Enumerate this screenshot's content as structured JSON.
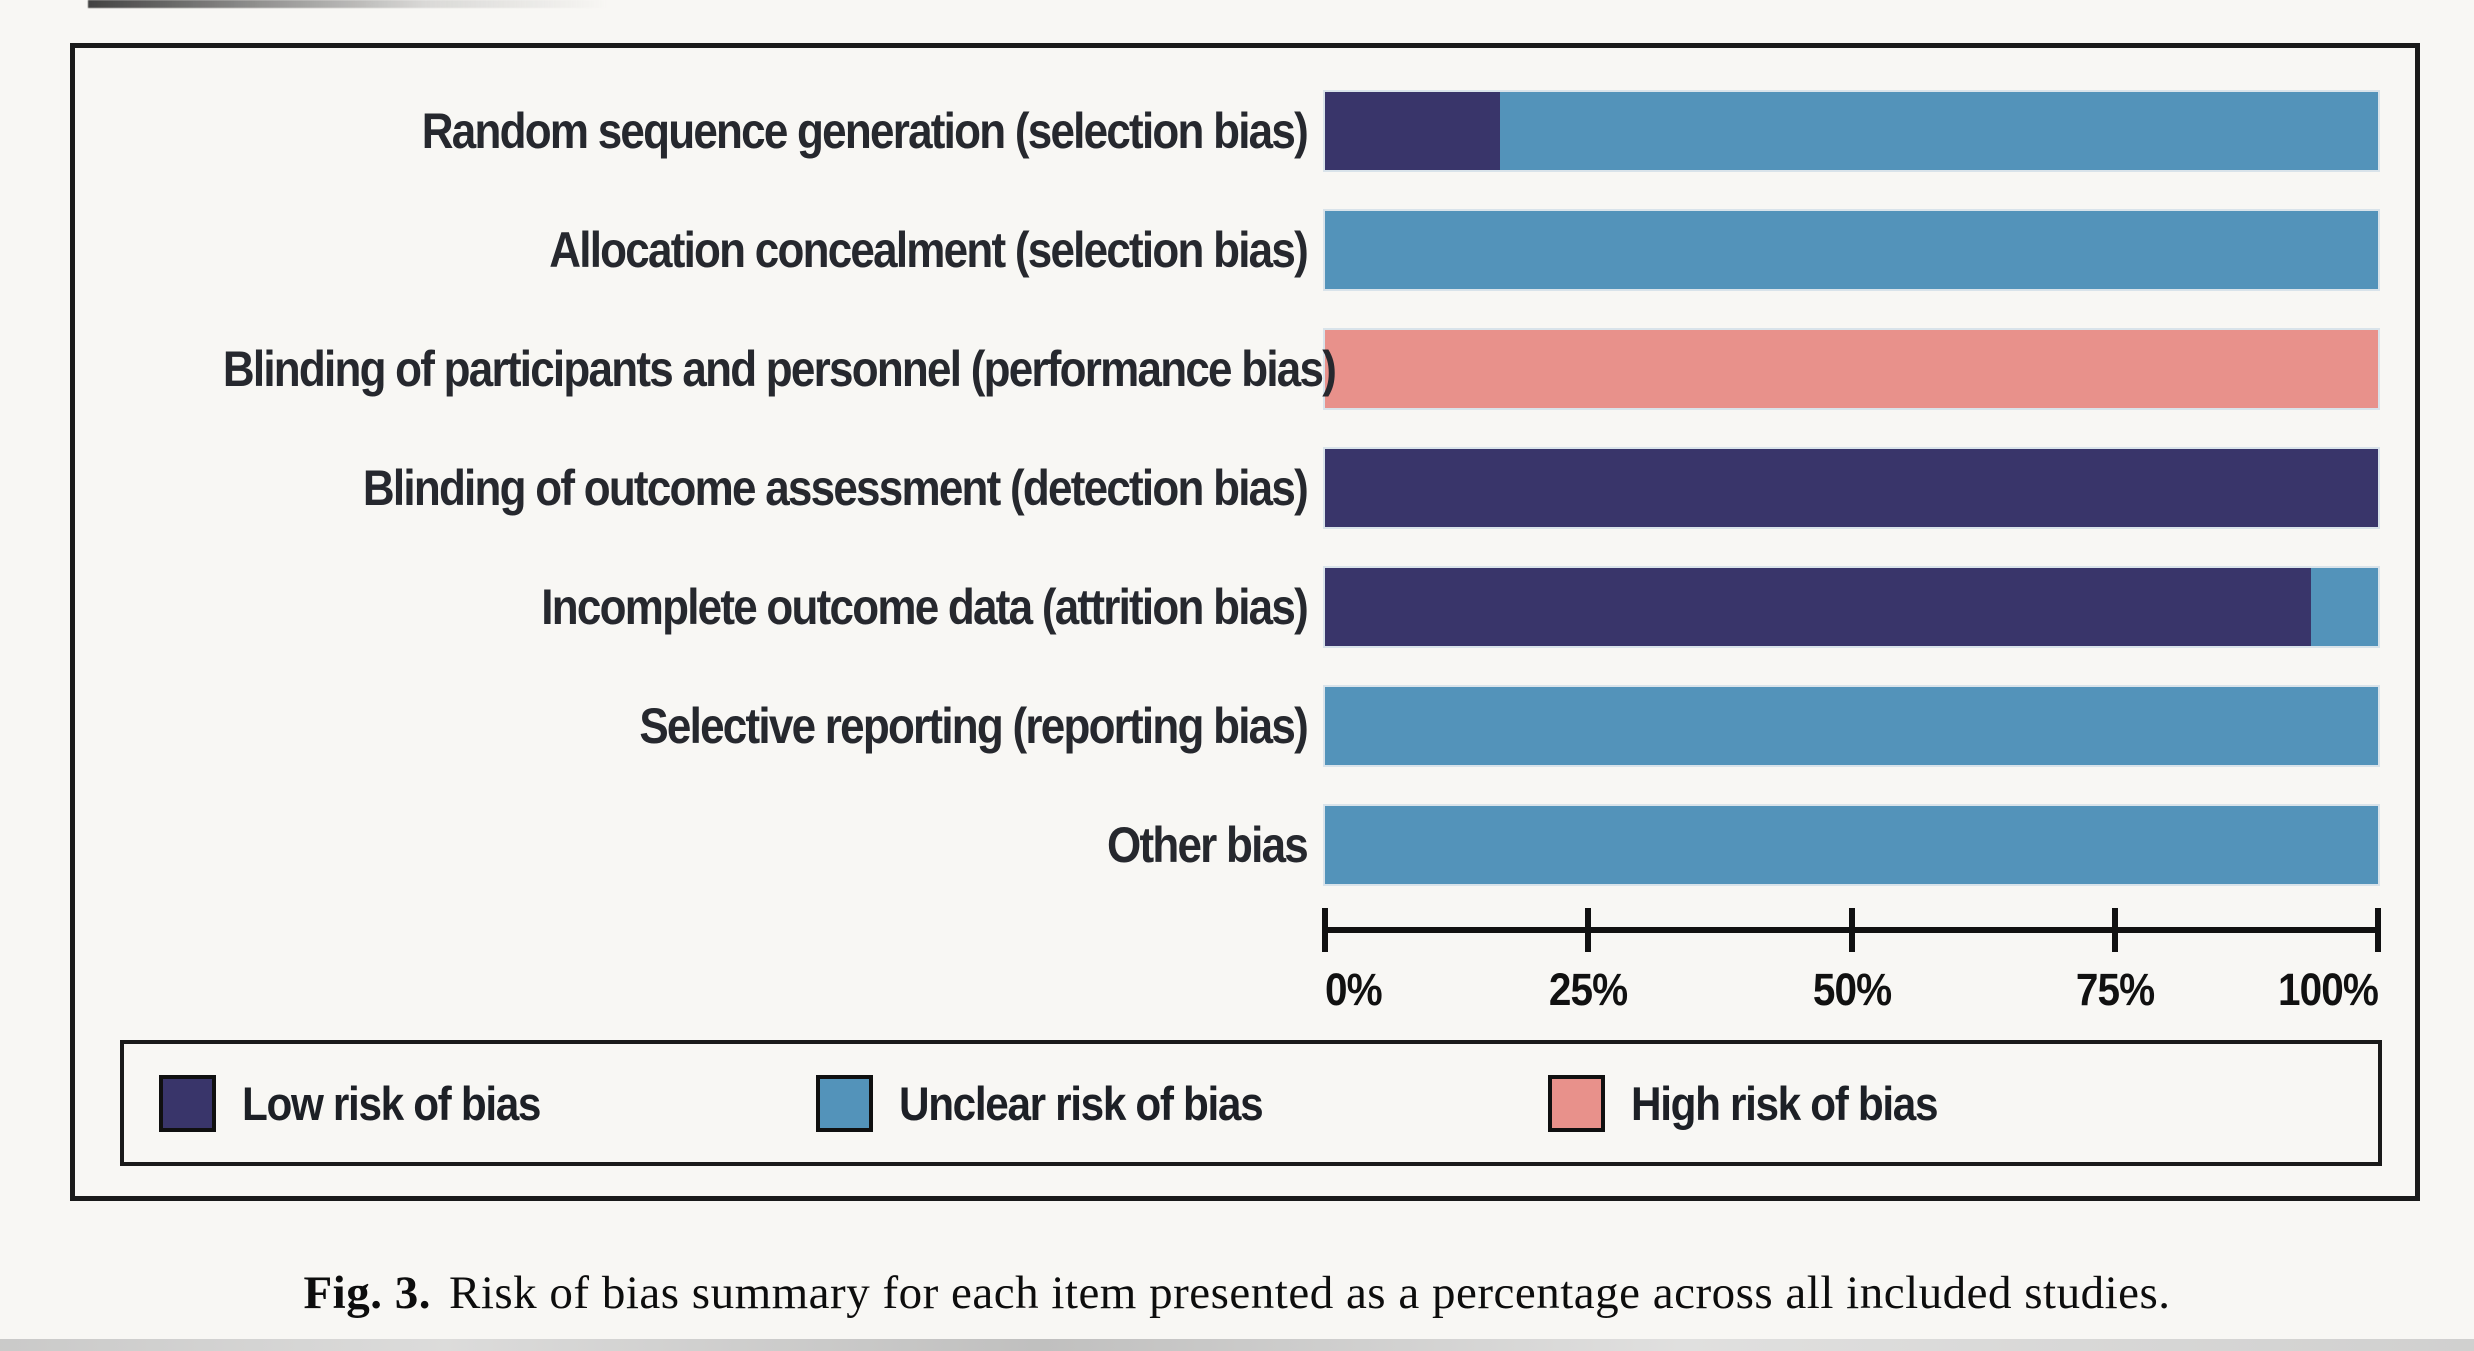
{
  "figure": {
    "caption_prefix": "Fig. 3.",
    "caption_text": "Risk of bias summary for each item presented as a percentage across all included studies."
  },
  "chart_data": {
    "type": "bar",
    "orientation": "horizontal_stacked",
    "title": "",
    "xlabel": "",
    "ylabel": "",
    "xlim": [
      0,
      100
    ],
    "x_tick_labels": [
      "0%",
      "25%",
      "50%",
      "75%",
      "100%"
    ],
    "grid": false,
    "legend_position": "bottom",
    "categories": [
      "Random sequence generation (selection bias)",
      "Allocation concealment (selection bias)",
      "Blinding of participants and personnel (performance bias)",
      "Blinding of outcome assessment (detection bias)",
      "Incomplete outcome data (attrition bias)",
      "Selective reporting (reporting bias)",
      "Other bias"
    ],
    "series": [
      {
        "name": "Low risk of bias",
        "color": "#39356a",
        "values": [
          16.6,
          0,
          0,
          100,
          93.6,
          0,
          0
        ]
      },
      {
        "name": "Unclear risk of bias",
        "color": "#5393ba",
        "values": [
          83.4,
          100,
          0,
          0,
          6.4,
          100,
          100
        ]
      },
      {
        "name": "High risk of bias",
        "color": "#e8918b",
        "values": [
          0,
          0,
          100,
          0,
          0,
          0,
          0
        ]
      }
    ]
  },
  "legend": {
    "items": [
      {
        "label": "Low risk of bias",
        "color": "#39356a"
      },
      {
        "label": "Unclear risk of bias",
        "color": "#5393ba"
      },
      {
        "label": "High risk of bias",
        "color": "#e8918b"
      }
    ]
  },
  "colors": {
    "low_risk": "#39356a",
    "unclear_risk": "#5393ba",
    "high_risk": "#e8918b",
    "frame_border": "#1a1a1a",
    "background": "#f8f7f4"
  }
}
